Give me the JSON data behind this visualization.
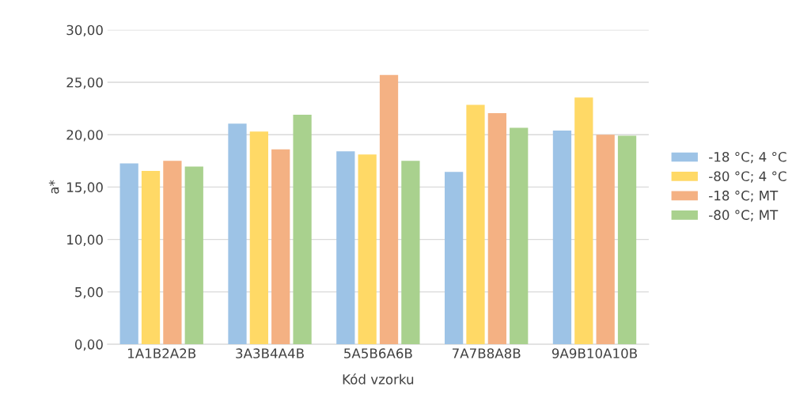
{
  "chart_data": {
    "type": "bar",
    "xlabel": "Kód vzorku",
    "ylabel": "a*",
    "categories": [
      "1A1B2A2B",
      "3A3B4A4B",
      "5A5B6A6B",
      "7A7B8A8B",
      "9A9B10A10B"
    ],
    "series": [
      {
        "name": "-18 °C; 4 °C",
        "color": "#9dc3e6",
        "values": [
          17.25,
          21.05,
          18.4,
          16.45,
          20.4
        ]
      },
      {
        "name": "-80 °C; 4 °C",
        "color": "#ffd966",
        "values": [
          16.55,
          20.3,
          18.1,
          22.85,
          23.55
        ]
      },
      {
        "name": "-18 °C; MT",
        "color": "#f4b183",
        "values": [
          17.5,
          18.6,
          25.7,
          22.05,
          20.0
        ]
      },
      {
        "name": "-80 °C; MT",
        "color": "#a9d18e",
        "values": [
          16.95,
          21.9,
          17.5,
          20.65,
          19.9
        ]
      }
    ],
    "ylim": [
      0,
      30
    ],
    "yticks": [
      {
        "value": 0,
        "label": "0,00"
      },
      {
        "value": 5,
        "label": "5,00"
      },
      {
        "value": 10,
        "label": "10,00"
      },
      {
        "value": 15,
        "label": "15,00"
      },
      {
        "value": 20,
        "label": "20,00"
      },
      {
        "value": 25,
        "label": "25,00"
      },
      {
        "value": 30,
        "label": "30,00"
      }
    ],
    "grid": "y",
    "legend": "right"
  }
}
